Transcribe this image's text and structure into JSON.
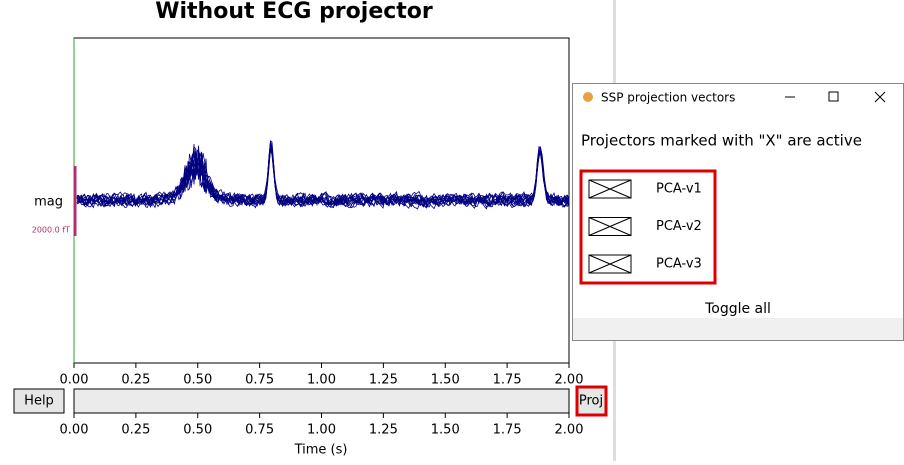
{
  "figure": {
    "title": "Without ECG projector",
    "channel_label": "mag",
    "scale_label": "2000.0 fT",
    "xlim": [
      0,
      2
    ],
    "xticks": [
      {
        "value": 0,
        "label": "0.00"
      },
      {
        "value": 0.25,
        "label": "0.25"
      },
      {
        "value": 0.5,
        "label": "0.50"
      },
      {
        "value": 0.75,
        "label": "0.75"
      },
      {
        "value": 1,
        "label": "1.00"
      },
      {
        "value": 1.25,
        "label": "1.25"
      },
      {
        "value": 1.5,
        "label": "1.50"
      },
      {
        "value": 1.75,
        "label": "1.75"
      },
      {
        "value": 2,
        "label": "2.00"
      }
    ],
    "xlabel": "Time (s)",
    "help_button": "Help",
    "proj_button": "Proj"
  },
  "dialog": {
    "title": "SSP projection vectors",
    "heading": "Projectors marked with \"X\" are active",
    "projectors": [
      "PCA-v1",
      "PCA-v2",
      "PCA-v3"
    ],
    "toggle_all": "Toggle all"
  }
}
